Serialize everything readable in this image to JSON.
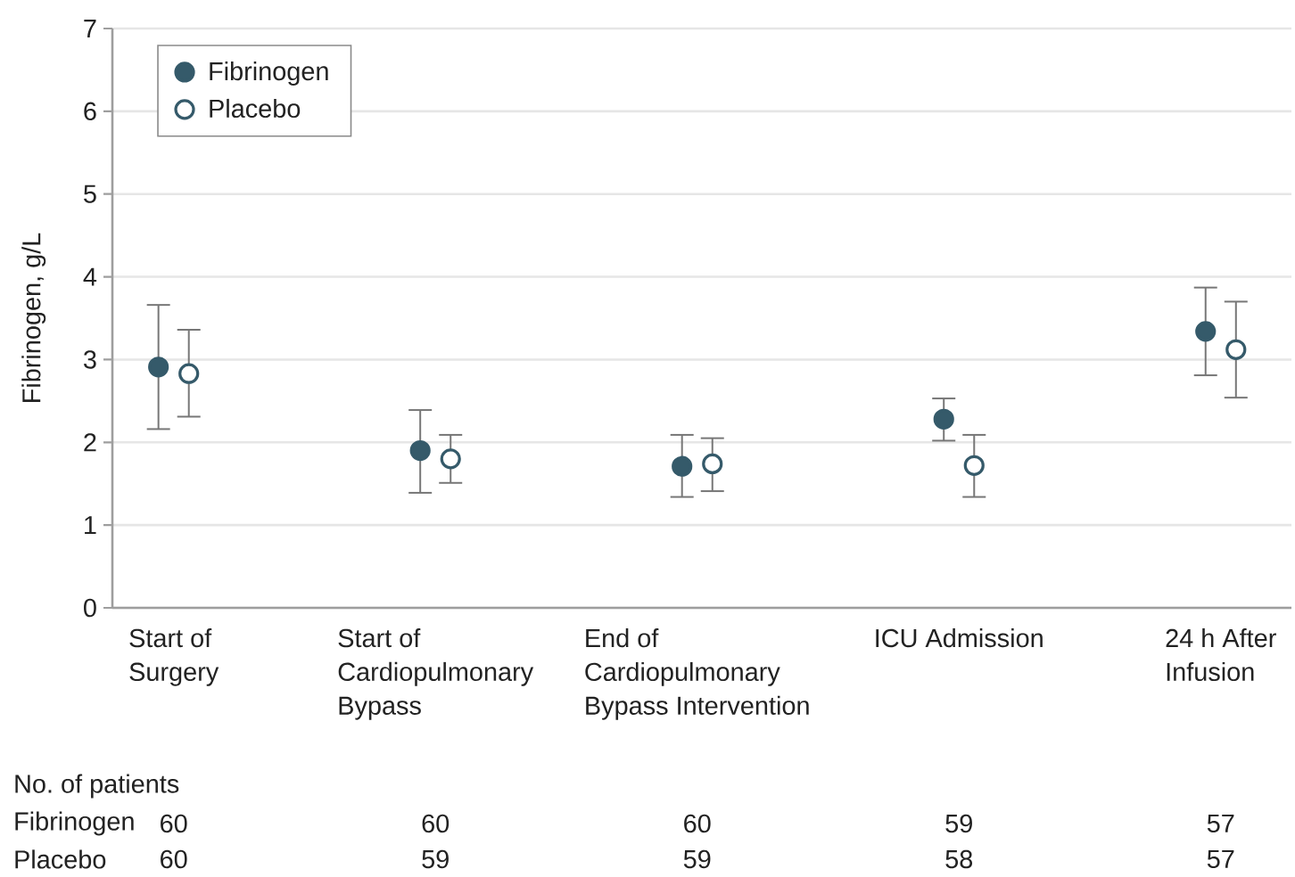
{
  "chart_data": {
    "type": "scatter",
    "ylabel": "Fibrinogen, g/L",
    "categories": [
      "Start of Surgery",
      "Start of Cardiopulmonary Bypass",
      "End of Cardiopulmonary Bypass Intervention",
      "ICU Admission",
      "24 h After Infusion"
    ],
    "series": [
      {
        "name": "Fibrinogen",
        "color": "#355a6a",
        "values": [
          2.91,
          1.9,
          1.71,
          2.28,
          3.34
        ],
        "errors": [
          [
            2.16,
            3.66
          ],
          [
            1.39,
            2.39
          ],
          [
            1.34,
            2.09
          ],
          [
            2.02,
            2.53
          ],
          [
            2.81,
            3.87
          ]
        ]
      },
      {
        "name": "Placebo",
        "color": "#355a6a",
        "values": [
          2.83,
          1.8,
          1.74,
          1.72,
          3.12
        ],
        "errors": [
          [
            2.31,
            3.36
          ],
          [
            1.51,
            2.09
          ],
          [
            1.41,
            2.05
          ],
          [
            1.34,
            2.09
          ],
          [
            2.54,
            3.7
          ]
        ]
      }
    ],
    "ylim": [
      0,
      7
    ],
    "yticks": [
      0,
      1,
      2,
      3,
      4,
      5,
      6,
      7
    ],
    "grid": "y",
    "legend": "top left",
    "marker": "circle",
    "annotations": [
      "No. of patients",
      "Fibrinogen",
      "60",
      "60",
      "60",
      "59",
      "57",
      "Placebo",
      "60",
      "59",
      "59",
      "58",
      "57"
    ]
  }
}
